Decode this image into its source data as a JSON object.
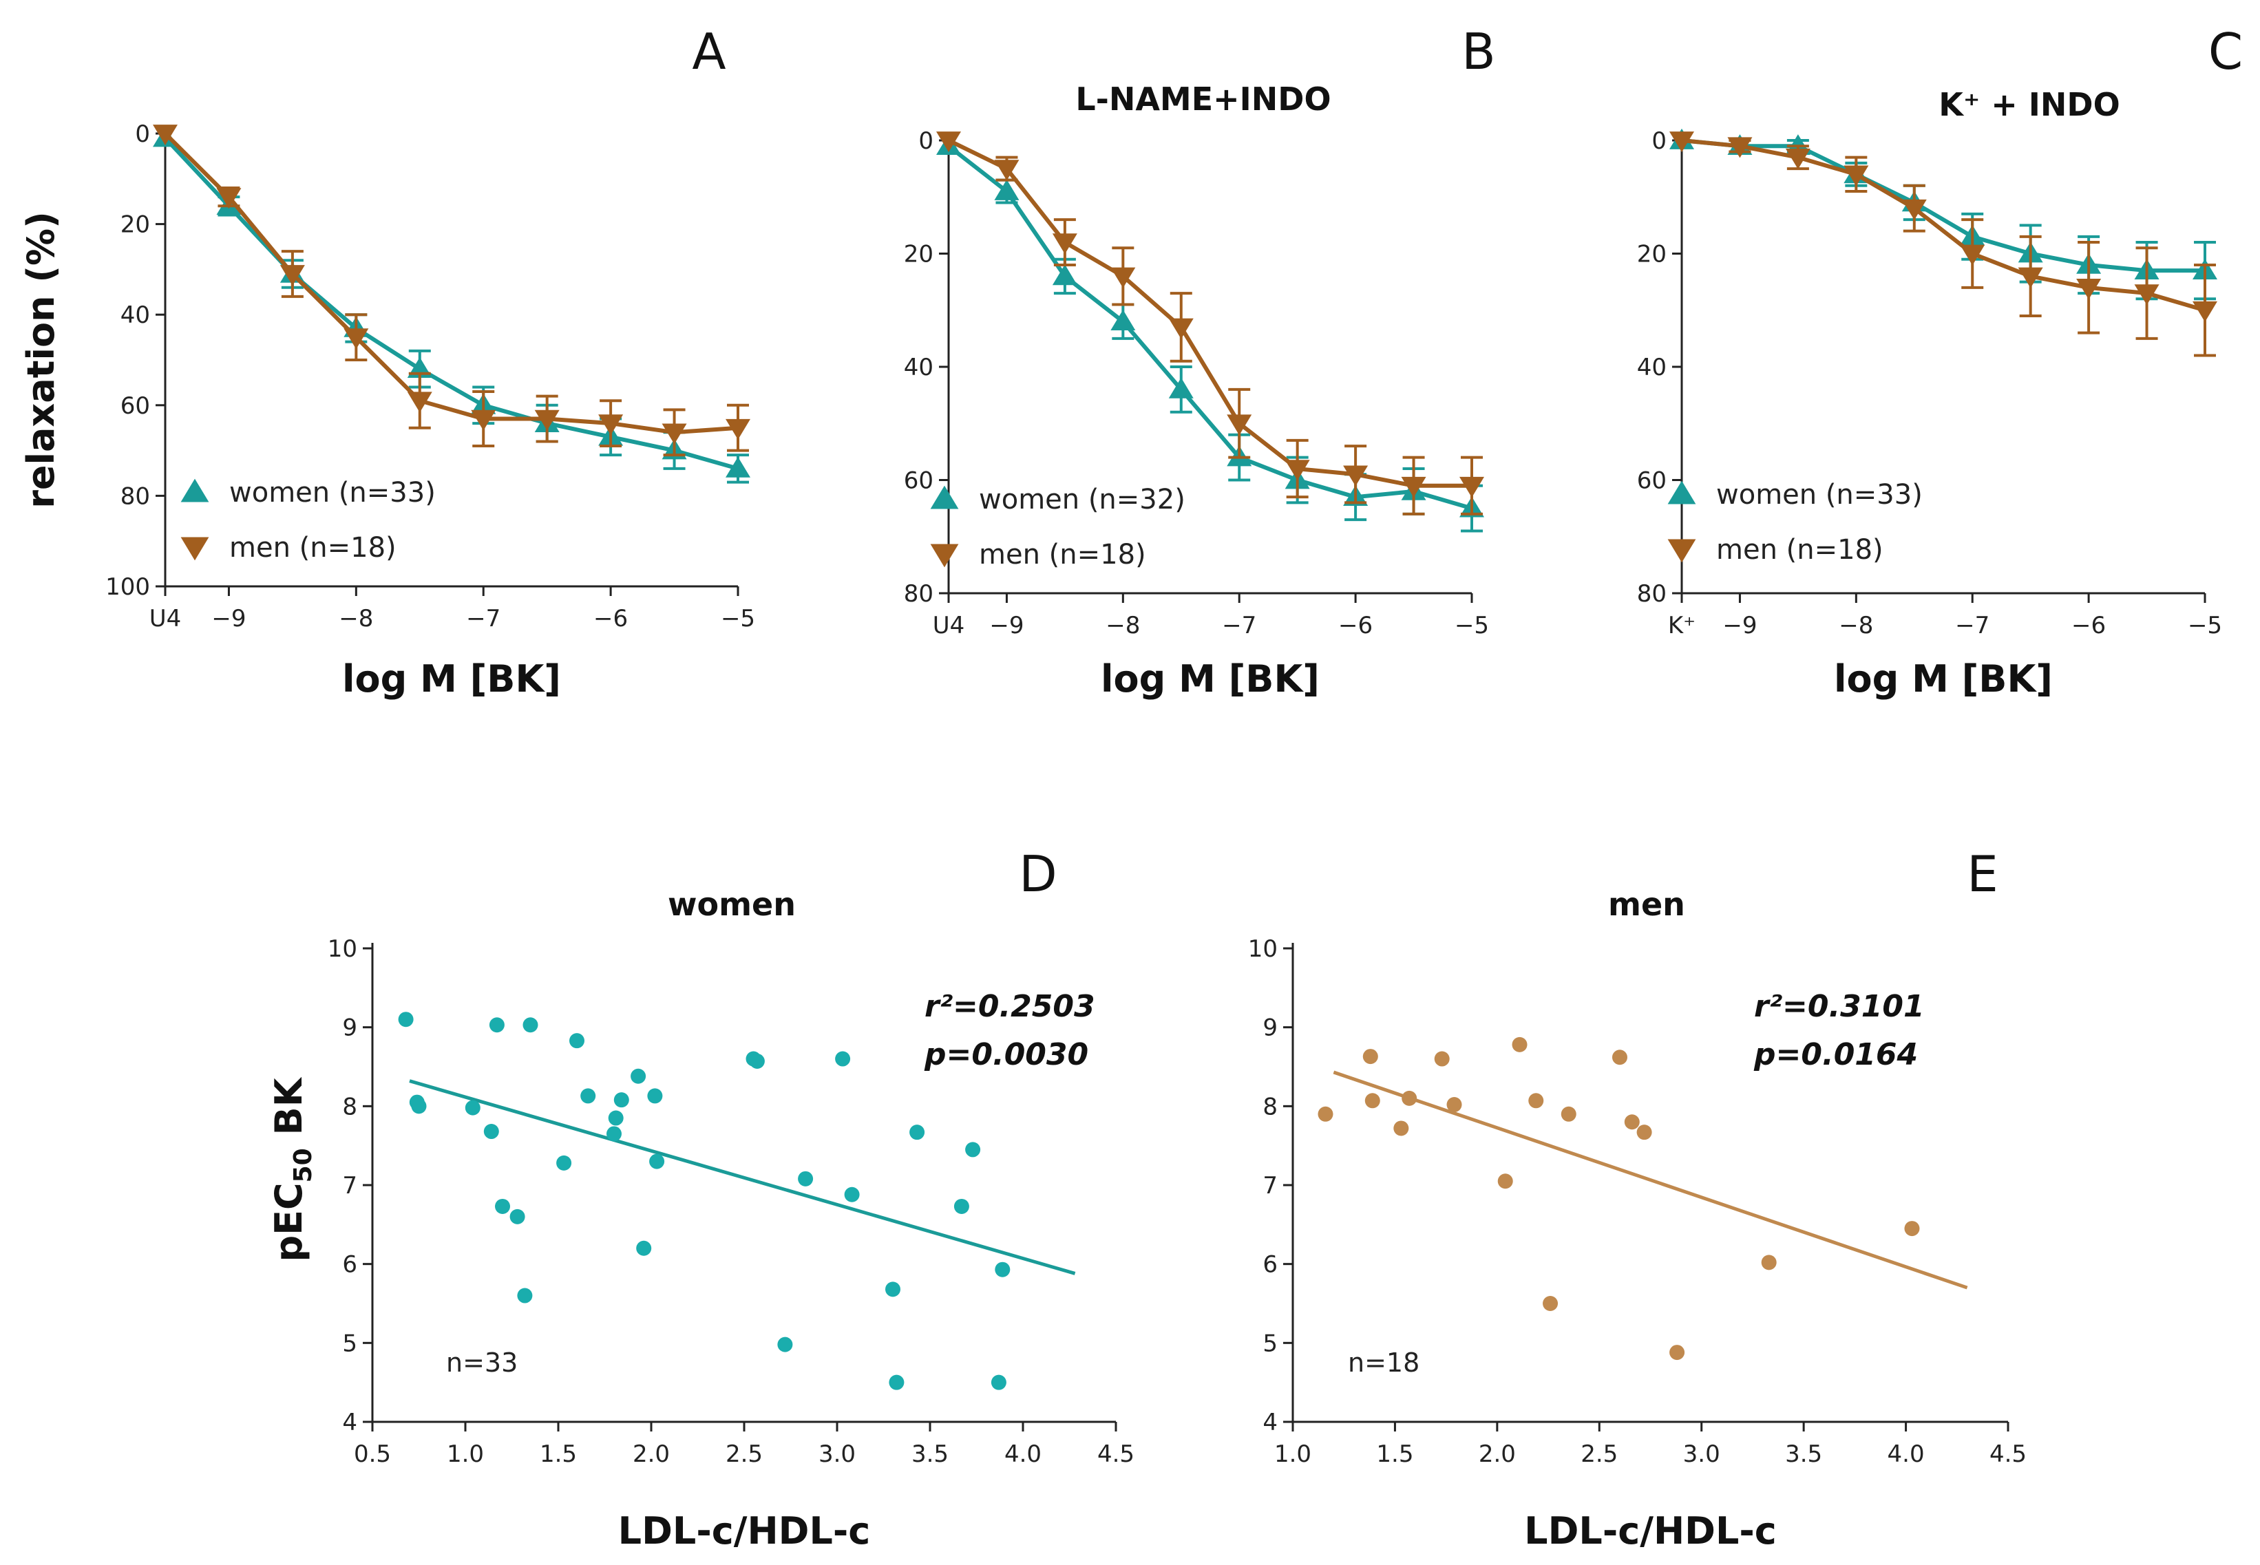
{
  "colors": {
    "women": "#1a9b98",
    "men": "#a25e1e",
    "women_dot": "#1aadad",
    "men_dot": "#c0894e",
    "axis": "#222222"
  },
  "chart_data": [
    {
      "id": "A",
      "type": "line",
      "letter": "A",
      "title": "",
      "xlabel": "log M [BK]",
      "ylabel": "relaxation (%)",
      "xlim": [
        -9.5,
        -5
      ],
      "ylim": [
        0,
        100
      ],
      "y_inverted": true,
      "xticks": [
        -9.5,
        -9,
        -8,
        -7,
        -6,
        -5
      ],
      "xtick_labels": [
        "U4",
        "−9",
        "−8",
        "−7",
        "−6",
        "−5"
      ],
      "yticks": [
        0,
        20,
        40,
        60,
        80,
        100
      ],
      "ytick_labels": [
        "0",
        "20",
        "40",
        "60",
        "80",
        "100"
      ],
      "x": [
        -9.5,
        -9,
        -8.5,
        -8,
        -7.5,
        -7,
        -6.5,
        -6,
        -5.5,
        -5
      ],
      "series": [
        {
          "name": "women (n=33)",
          "color_key": "women",
          "marker": "triangle-up",
          "values": [
            1,
            16,
            31,
            43,
            52,
            60,
            64,
            67,
            70,
            74
          ],
          "errors": [
            0,
            2,
            3,
            3,
            4,
            4,
            4,
            4,
            4,
            3
          ]
        },
        {
          "name": "men (n=18)",
          "color_key": "men",
          "marker": "triangle-down",
          "values": [
            0,
            14,
            31,
            45,
            59,
            63,
            63,
            64,
            66,
            65
          ],
          "errors": [
            0,
            2,
            5,
            5,
            6,
            6,
            5,
            5,
            5,
            5
          ]
        }
      ]
    },
    {
      "id": "B",
      "type": "line",
      "letter": "B",
      "title": "L-NAME+INDO",
      "xlabel": "log M [BK]",
      "ylabel": "",
      "xlim": [
        -9.5,
        -5
      ],
      "ylim": [
        0,
        80
      ],
      "y_inverted": true,
      "xticks": [
        -9.5,
        -9,
        -8,
        -7,
        -6,
        -5
      ],
      "xtick_labels": [
        "U4",
        "−9",
        "−8",
        "−7",
        "−6",
        "−5"
      ],
      "yticks": [
        0,
        20,
        40,
        60,
        80
      ],
      "ytick_labels": [
        "0",
        "20",
        "40",
        "60",
        "80"
      ],
      "x": [
        -9.5,
        -9,
        -8.5,
        -8,
        -7.5,
        -7,
        -6.5,
        -6,
        -5.5,
        -5
      ],
      "series": [
        {
          "name": "women (n=32)",
          "color_key": "women",
          "marker": "triangle-up",
          "values": [
            1,
            9,
            24,
            32,
            44,
            56,
            60,
            63,
            62,
            65
          ],
          "errors": [
            0,
            2,
            3,
            3,
            4,
            4,
            4,
            4,
            4,
            4
          ]
        },
        {
          "name": "men (n=18)",
          "color_key": "men",
          "marker": "triangle-down",
          "values": [
            0,
            5,
            18,
            24,
            33,
            50,
            58,
            59,
            61,
            61
          ],
          "errors": [
            0,
            2,
            4,
            5,
            6,
            6,
            5,
            5,
            5,
            5
          ]
        }
      ]
    },
    {
      "id": "C",
      "type": "line",
      "letter": "C",
      "title": "K⁺ + INDO",
      "xlabel": "log M [BK]",
      "ylabel": "",
      "xlim": [
        -9.5,
        -5
      ],
      "ylim": [
        0,
        80
      ],
      "y_inverted": true,
      "xticks": [
        -9.5,
        -9,
        -8,
        -7,
        -6,
        -5
      ],
      "xtick_labels": [
        "K⁺",
        "−9",
        "−8",
        "−7",
        "−6",
        "−5"
      ],
      "yticks": [
        0,
        20,
        40,
        60,
        80
      ],
      "ytick_labels": [
        "0",
        "20",
        "40",
        "60",
        "80"
      ],
      "x": [
        -9.5,
        -9,
        -8.5,
        -8,
        -7.5,
        -7,
        -6.5,
        -6,
        -5.5,
        -5
      ],
      "series": [
        {
          "name": "women (n=33)",
          "color_key": "women",
          "marker": "triangle-up",
          "values": [
            0,
            1,
            1,
            6,
            11,
            17,
            20,
            22,
            23,
            23
          ],
          "errors": [
            0,
            1,
            1,
            2,
            3,
            4,
            5,
            5,
            5,
            5
          ]
        },
        {
          "name": "men (n=18)",
          "color_key": "men",
          "marker": "triangle-down",
          "values": [
            0,
            1,
            3,
            6,
            12,
            20,
            24,
            26,
            27,
            30
          ],
          "errors": [
            0,
            1,
            2,
            3,
            4,
            6,
            7,
            8,
            8,
            8
          ]
        }
      ]
    },
    {
      "id": "D",
      "type": "scatter",
      "letter": "D",
      "title": "women",
      "xlabel": "LDL-c/HDL-c",
      "ylabel_main": "pEC",
      "ylabel_sub": "50",
      "ylabel_tail": " BK",
      "xlim": [
        0.5,
        4.5
      ],
      "ylim": [
        4,
        10
      ],
      "xticks": [
        0.5,
        1.0,
        1.5,
        2.0,
        2.5,
        3.0,
        3.5,
        4.0,
        4.5
      ],
      "xtick_labels": [
        "0.5",
        "1.0",
        "1.5",
        "2.0",
        "2.5",
        "3.0",
        "3.5",
        "4.0",
        "4.5"
      ],
      "yticks": [
        4,
        5,
        6,
        7,
        8,
        9,
        10
      ],
      "ytick_labels": [
        "4",
        "5",
        "6",
        "7",
        "8",
        "9",
        "10"
      ],
      "color_key": "women_dot",
      "line_color_key": "women",
      "r2_label": "r²=0.2503",
      "p_label": "p=0.0030",
      "n_label": "n=33",
      "fit": {
        "x": [
          0.7,
          4.28
        ],
        "y": [
          8.32,
          5.88
        ]
      },
      "points": [
        [
          0.68,
          9.1
        ],
        [
          0.74,
          8.05
        ],
        [
          0.75,
          8.0
        ],
        [
          1.04,
          7.98
        ],
        [
          1.14,
          7.68
        ],
        [
          1.17,
          9.03
        ],
        [
          1.2,
          6.73
        ],
        [
          1.28,
          6.6
        ],
        [
          1.32,
          5.6
        ],
        [
          1.35,
          9.03
        ],
        [
          1.53,
          7.28
        ],
        [
          1.6,
          8.83
        ],
        [
          1.66,
          8.13
        ],
        [
          1.8,
          7.65
        ],
        [
          1.81,
          7.85
        ],
        [
          1.84,
          8.08
        ],
        [
          1.93,
          8.38
        ],
        [
          1.96,
          6.2
        ],
        [
          2.02,
          8.13
        ],
        [
          2.03,
          7.3
        ],
        [
          2.55,
          8.6
        ],
        [
          2.57,
          8.57
        ],
        [
          2.72,
          4.98
        ],
        [
          2.83,
          7.08
        ],
        [
          3.03,
          8.6
        ],
        [
          3.08,
          6.88
        ],
        [
          3.3,
          5.68
        ],
        [
          3.32,
          4.5
        ],
        [
          3.43,
          7.67
        ],
        [
          3.67,
          6.73
        ],
        [
          3.73,
          7.45
        ],
        [
          3.87,
          4.5
        ],
        [
          3.89,
          5.93
        ]
      ]
    },
    {
      "id": "E",
      "type": "scatter",
      "letter": "E",
      "title": "men",
      "xlabel": "LDL-c/HDL-c",
      "ylabel_main": "",
      "ylabel_sub": "",
      "ylabel_tail": "",
      "xlim": [
        1.0,
        4.5
      ],
      "ylim": [
        4,
        10
      ],
      "xticks": [
        1.0,
        1.5,
        2.0,
        2.5,
        3.0,
        3.5,
        4.0,
        4.5
      ],
      "xtick_labels": [
        "1.0",
        "1.5",
        "2.0",
        "2.5",
        "3.0",
        "3.5",
        "4.0",
        "4.5"
      ],
      "yticks": [
        4,
        5,
        6,
        7,
        8,
        9,
        10
      ],
      "ytick_labels": [
        "4",
        "5",
        "6",
        "7",
        "8",
        "9",
        "10"
      ],
      "color_key": "men_dot",
      "line_color_key": "men_dot",
      "r2_label": "r²=0.3101",
      "p_label": "p=0.0164",
      "n_label": "n=18",
      "fit": {
        "x": [
          1.2,
          4.3
        ],
        "y": [
          8.43,
          5.7
        ]
      },
      "points": [
        [
          1.16,
          7.9
        ],
        [
          1.38,
          8.63
        ],
        [
          1.39,
          8.07
        ],
        [
          1.53,
          7.72
        ],
        [
          1.57,
          8.1
        ],
        [
          1.73,
          8.6
        ],
        [
          1.79,
          8.02
        ],
        [
          2.04,
          7.05
        ],
        [
          2.11,
          8.78
        ],
        [
          2.19,
          8.07
        ],
        [
          2.26,
          5.5
        ],
        [
          2.35,
          7.9
        ],
        [
          2.6,
          8.62
        ],
        [
          2.66,
          7.8
        ],
        [
          2.72,
          7.67
        ],
        [
          2.88,
          4.88
        ],
        [
          3.33,
          6.02
        ],
        [
          4.03,
          6.45
        ]
      ]
    }
  ]
}
